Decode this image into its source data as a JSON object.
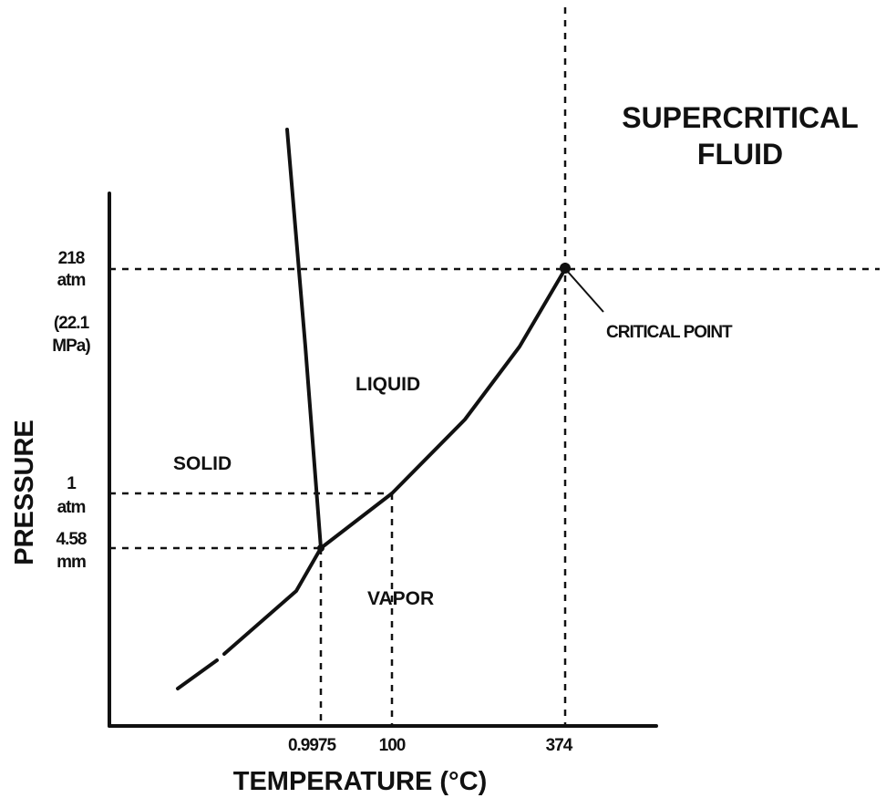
{
  "title_lines": [
    "SUPERCRITICAL",
    "FLUID"
  ],
  "regions": {
    "solid": "SOLID",
    "liquid": "LIQUID",
    "vapor": "VAPOR"
  },
  "critical_point": "CRITICAL POINT",
  "y_axis_label": "PRESSURE",
  "x_axis_label": "TEMPERATURE (°C)",
  "pressure_labels": [
    [
      "218",
      "atm"
    ],
    [
      "(22.1",
      "MPa)"
    ],
    [
      "1",
      "atm"
    ],
    [
      "4.58",
      "mm"
    ]
  ],
  "temperature_labels": [
    "0.9975",
    "100",
    "374"
  ]
}
